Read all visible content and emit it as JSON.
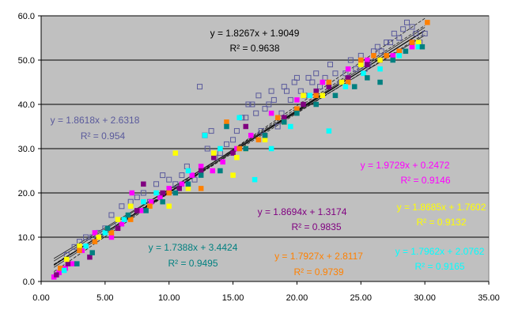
{
  "chart_data": {
    "type": "scatter",
    "title": "",
    "xlabel": "",
    "ylabel": "",
    "xlim": [
      0,
      35
    ],
    "ylim": [
      0,
      60
    ],
    "x_ticks": [
      "0.00",
      "5.00",
      "10.00",
      "15.00",
      "20.00",
      "25.00",
      "30.00",
      "35.00"
    ],
    "y_ticks": [
      "0.0",
      "10.0",
      "20.0",
      "30.0",
      "40.0",
      "50.0",
      "60.0"
    ],
    "grid": "horizontal",
    "plot_background": "#c0c0c0",
    "series": [
      {
        "color": "#5a5a9c",
        "marker": "open-square",
        "trendline": {
          "slope": 1.8267,
          "intercept": 1.9049
        },
        "equation": "y = 1.8267x + 1.9049",
        "r2": "R² = 0.9638",
        "points": [
          [
            2,
            6
          ],
          [
            2.6,
            7.8
          ],
          [
            3,
            9
          ],
          [
            3.5,
            10
          ],
          [
            4,
            10
          ],
          [
            4.5,
            11
          ],
          [
            5,
            12
          ],
          [
            5.5,
            15
          ],
          [
            6,
            13
          ],
          [
            6.3,
            17
          ],
          [
            7,
            18
          ],
          [
            7.5,
            19
          ],
          [
            8,
            20
          ],
          [
            8.5,
            18
          ],
          [
            9,
            22
          ],
          [
            9.5,
            24
          ],
          [
            10,
            23
          ],
          [
            10.5,
            22
          ],
          [
            11,
            24
          ],
          [
            11.4,
            26
          ],
          [
            12,
            23
          ],
          [
            12.4,
            44
          ],
          [
            12.8,
            33
          ],
          [
            13,
            30
          ],
          [
            13.3,
            34
          ],
          [
            13.6,
            28
          ],
          [
            14,
            29
          ],
          [
            14.5,
            31
          ],
          [
            15,
            32
          ],
          [
            15.3,
            34
          ],
          [
            15.7,
            37
          ],
          [
            16,
            37
          ],
          [
            16.2,
            40
          ],
          [
            16.5,
            40
          ],
          [
            16.8,
            38
          ],
          [
            17,
            42
          ],
          [
            17.2,
            34
          ],
          [
            17.5,
            39
          ],
          [
            17.8,
            40
          ],
          [
            18,
            43
          ],
          [
            18.2,
            41
          ],
          [
            18.5,
            35
          ],
          [
            18.8,
            38
          ],
          [
            19,
            44
          ],
          [
            19.2,
            43
          ],
          [
            19.5,
            41
          ],
          [
            19.8,
            45
          ],
          [
            20,
            46
          ],
          [
            20.3,
            43
          ],
          [
            20.6,
            42
          ],
          [
            20.9,
            46
          ],
          [
            21.2,
            45
          ],
          [
            21.5,
            47
          ],
          [
            21.8,
            44
          ],
          [
            22.2,
            46
          ],
          [
            22.6,
            49
          ],
          [
            23,
            47
          ],
          [
            23.4,
            45
          ],
          [
            23.8,
            47
          ],
          [
            24.2,
            50
          ],
          [
            24.6,
            48
          ],
          [
            25,
            51
          ],
          [
            25.3,
            48
          ],
          [
            25.6,
            49
          ],
          [
            26,
            52
          ],
          [
            26.3,
            53
          ],
          [
            26.6,
            52
          ],
          [
            27,
            54
          ],
          [
            27.3,
            54
          ],
          [
            27.6,
            56
          ],
          [
            28,
            55
          ],
          [
            28.3,
            57
          ],
          [
            28.6,
            58.5
          ],
          [
            29,
            57.5
          ],
          [
            29.3,
            56
          ],
          [
            29.6,
            54
          ],
          [
            30,
            56
          ]
        ]
      },
      {
        "color": "#ff00ff",
        "marker": "filled-square",
        "trendline": {
          "slope": 1.9729,
          "intercept": 0.2472
        },
        "equation": "y = 1.9729x + 0.2472",
        "r2": "R² = 0.9146",
        "points": [
          [
            1,
            1
          ],
          [
            1.4,
            2
          ],
          [
            1.9,
            3
          ],
          [
            2.5,
            4
          ],
          [
            3.2,
            7
          ],
          [
            4.2,
            11
          ],
          [
            5.5,
            10
          ],
          [
            6.3,
            13
          ],
          [
            7.1,
            20
          ],
          [
            7.8,
            16
          ],
          [
            8.6,
            18
          ],
          [
            9.3,
            19
          ],
          [
            10,
            21
          ],
          [
            11,
            22
          ],
          [
            11.8,
            24
          ],
          [
            12.5,
            26
          ],
          [
            13.4,
            25
          ],
          [
            14.2,
            27
          ],
          [
            15.3,
            30
          ],
          [
            16.4,
            33
          ],
          [
            18,
            38
          ],
          [
            20,
            41
          ],
          [
            22,
            45
          ],
          [
            24,
            48
          ],
          [
            25.5,
            50
          ],
          [
            27.5,
            51
          ],
          [
            29,
            53
          ]
        ]
      },
      {
        "color": "#800080",
        "marker": "filled-square",
        "trendline": {
          "slope": 1.8694,
          "intercept": 1.3174
        },
        "equation": "y = 1.8694x + 1.3174",
        "r2": "R² = 0.9835",
        "points": [
          [
            1.2,
            1.5
          ],
          [
            2.1,
            4
          ],
          [
            3.8,
            5.5
          ],
          [
            4.5,
            10
          ],
          [
            6,
            12
          ],
          [
            7.5,
            16
          ],
          [
            8,
            22
          ],
          [
            9.5,
            20
          ],
          [
            10.8,
            21
          ],
          [
            12.5,
            25
          ],
          [
            13.5,
            28
          ],
          [
            15,
            29
          ],
          [
            16,
            35
          ],
          [
            17.5,
            33
          ],
          [
            19,
            37
          ],
          [
            20.5,
            40
          ],
          [
            21.5,
            43
          ],
          [
            22.5,
            44
          ],
          [
            24,
            46
          ],
          [
            25.5,
            49
          ],
          [
            26.5,
            50
          ],
          [
            28,
            52
          ],
          [
            29,
            54
          ]
        ]
      },
      {
        "color": "#ffff00",
        "marker": "filled-square",
        "trendline": {
          "slope": 1.8685,
          "intercept": 1.7602
        },
        "equation": "y = 1.8685x + 1.7602",
        "r2": "R² = 0.9132",
        "points": [
          [
            2,
            5
          ],
          [
            3,
            8
          ],
          [
            4.5,
            10
          ],
          [
            6,
            14
          ],
          [
            7,
            17
          ],
          [
            8.5,
            17
          ],
          [
            10,
            17
          ],
          [
            10.5,
            29
          ],
          [
            11.5,
            21
          ],
          [
            13.5,
            29
          ],
          [
            15,
            24
          ],
          [
            15.3,
            28
          ],
          [
            16,
            30
          ],
          [
            17.5,
            32
          ],
          [
            19,
            36
          ],
          [
            20.5,
            42
          ],
          [
            22,
            42
          ],
          [
            23.5,
            45
          ],
          [
            25,
            49
          ],
          [
            26.5,
            50
          ],
          [
            28,
            51
          ],
          [
            29.5,
            54
          ]
        ]
      },
      {
        "color": "#ff8000",
        "marker": "filled-square",
        "trendline": {
          "slope": 1.7927,
          "intercept": 2.8117
        },
        "equation": "y = 1.7927x + 2.8117",
        "r2": "R² = 0.9739",
        "points": [
          [
            1.5,
            3
          ],
          [
            3,
            7
          ],
          [
            4.2,
            9
          ],
          [
            5.5,
            11
          ],
          [
            7,
            14
          ],
          [
            8.5,
            17
          ],
          [
            10,
            20
          ],
          [
            12.5,
            21
          ],
          [
            14.5,
            36
          ],
          [
            15.5,
            30
          ],
          [
            17,
            32
          ],
          [
            18.5,
            37
          ],
          [
            20,
            39
          ],
          [
            21.5,
            42
          ],
          [
            22.5,
            45
          ],
          [
            24,
            45
          ],
          [
            25,
            50
          ],
          [
            26,
            51
          ],
          [
            27,
            51
          ],
          [
            28,
            52
          ],
          [
            29,
            54
          ],
          [
            30.2,
            58.5
          ]
        ]
      },
      {
        "color": "#00ffff",
        "marker": "filled-square",
        "trendline": {
          "slope": 1.7962,
          "intercept": 2.0762
        },
        "equation": "y = 1.7962x + 2.0762",
        "r2": "R² = 0.9165",
        "points": [
          [
            1.8,
            2.5
          ],
          [
            3.5,
            8
          ],
          [
            5,
            11
          ],
          [
            6.5,
            14
          ],
          [
            8,
            18
          ],
          [
            9,
            20
          ],
          [
            11.5,
            25
          ],
          [
            12.8,
            33
          ],
          [
            14,
            30
          ],
          [
            15.5,
            37
          ],
          [
            16.7,
            23
          ],
          [
            18,
            30
          ],
          [
            19.5,
            35
          ],
          [
            21,
            42
          ],
          [
            22.5,
            34
          ],
          [
            23.8,
            44
          ],
          [
            25.2,
            47
          ],
          [
            26.5,
            48
          ],
          [
            28,
            51
          ],
          [
            29.5,
            53
          ]
        ]
      },
      {
        "color": "#008080",
        "marker": "filled-square",
        "trendline": {
          "slope": 1.7388,
          "intercept": 3.4424
        },
        "equation": "y = 1.7388x + 3.4424",
        "r2": "R² = 0.9495",
        "points": [
          [
            2.8,
            4
          ],
          [
            4,
            6.5
          ],
          [
            5.2,
            12
          ],
          [
            6.8,
            15
          ],
          [
            8.2,
            16
          ],
          [
            9.5,
            18
          ],
          [
            10.5,
            20
          ],
          [
            11.5,
            22
          ],
          [
            12.5,
            24
          ],
          [
            14,
            25
          ],
          [
            14.5,
            35
          ],
          [
            16,
            30
          ],
          [
            17.5,
            33
          ],
          [
            19,
            36
          ],
          [
            20,
            38
          ],
          [
            21.5,
            40
          ],
          [
            23,
            42
          ],
          [
            24.5,
            44
          ],
          [
            25.5,
            46
          ],
          [
            26.5,
            45
          ],
          [
            27.5,
            50
          ],
          [
            28.5,
            52
          ],
          [
            29.8,
            53
          ]
        ]
      }
    ]
  }
}
